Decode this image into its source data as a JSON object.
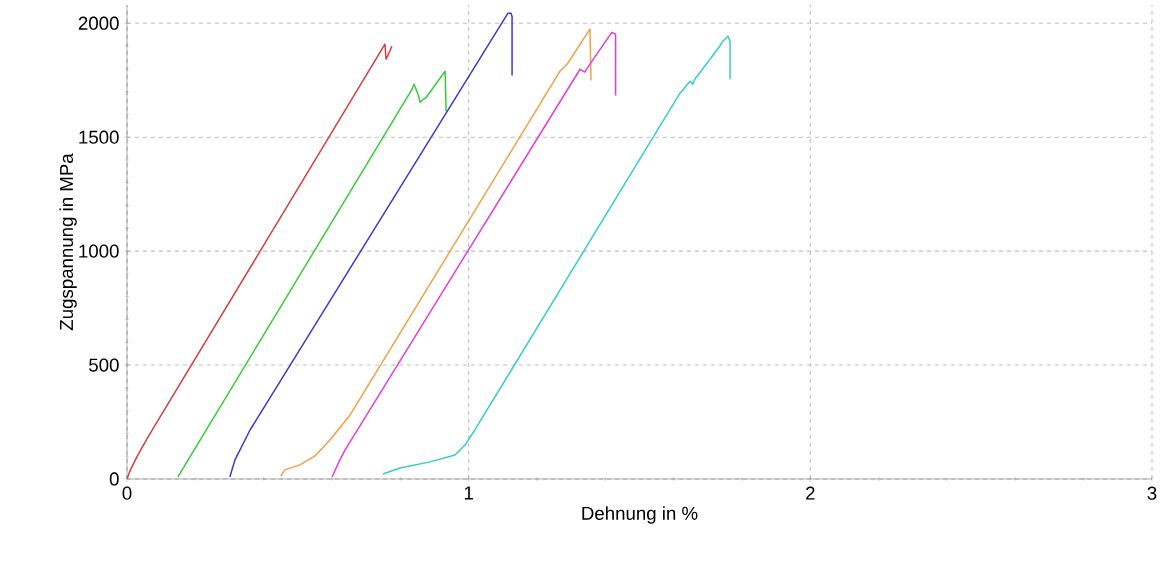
{
  "chart_data": {
    "type": "line",
    "xlabel": "Dehnung in %",
    "ylabel": "Zugspannung in MPa",
    "xlim": [
      0,
      3
    ],
    "ylim": [
      0,
      2080
    ],
    "xticks": [
      0,
      1,
      2,
      3
    ],
    "yticks": [
      0,
      500,
      1000,
      1500,
      2000
    ],
    "grid": true,
    "marker": "none",
    "line_style": "solid",
    "series": [
      {
        "color": "#d23c3c",
        "x": [
          0,
          0.01,
          0.03,
          0.06,
          0.1,
          0.755,
          0.758,
          0.77,
          0.775
        ],
        "values": [
          0,
          40,
          100,
          180,
          280,
          1908,
          1842,
          1880,
          1899
        ]
      },
      {
        "color": "#33cc33",
        "x": [
          0.149,
          0.834,
          0.84,
          0.852,
          0.858,
          0.867,
          0.876,
          0.931,
          0.934
        ],
        "values": [
          9,
          1710,
          1732,
          1688,
          1653,
          1666,
          1675,
          1789,
          1613
        ]
      },
      {
        "color": "#3838d0",
        "x": [
          0.301,
          0.316,
          0.36,
          1.115,
          1.124,
          1.127,
          1.127
        ],
        "values": [
          9,
          84,
          215,
          2044,
          2044,
          2030,
          1771
        ]
      },
      {
        "color": "#f0a040",
        "x": [
          0.45,
          0.462,
          0.506,
          0.55,
          0.594,
          0.653,
          1.267,
          1.288,
          1.355,
          1.358
        ],
        "values": [
          13,
          40,
          62,
          101,
          171,
          281,
          1789,
          1820,
          1974,
          1749
        ]
      },
      {
        "color": "#dd3ddd",
        "x": [
          0.6,
          0.623,
          0.638,
          1.326,
          1.34,
          1.349,
          1.419,
          1.43,
          1.43
        ],
        "values": [
          9,
          84,
          127,
          1798,
          1785,
          1807,
          1960,
          1952,
          1683
        ]
      },
      {
        "color": "#33cccc",
        "x": [
          0.749,
          0.799,
          0.887,
          0.96,
          0.989,
          1.018,
          1.618,
          1.648,
          1.656,
          1.662,
          1.735,
          1.744,
          1.759,
          1.765,
          1.765
        ],
        "values": [
          22,
          48,
          75,
          105,
          149,
          215,
          1692,
          1745,
          1732,
          1754,
          1899,
          1921,
          1943,
          1921,
          1754
        ]
      }
    ]
  }
}
